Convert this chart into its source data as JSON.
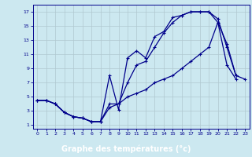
{
  "xlabel": "Graphe des températures (°c)",
  "bg_color": "#cce8f0",
  "plot_bg_color": "#cce8f0",
  "line_color": "#00008b",
  "grid_color": "#b0c8d0",
  "xlabel_bg": "#00008b",
  "xlabel_fg": "#ffffff",
  "xlim": [
    -0.5,
    23.5
  ],
  "ylim": [
    0.5,
    18
  ],
  "xticks": [
    0,
    1,
    2,
    3,
    4,
    5,
    6,
    7,
    8,
    9,
    10,
    11,
    12,
    13,
    14,
    15,
    16,
    17,
    18,
    19,
    20,
    21,
    22,
    23
  ],
  "yticks": [
    1,
    3,
    5,
    7,
    9,
    11,
    13,
    15,
    17
  ],
  "line1_x": [
    0,
    1,
    2,
    3,
    4,
    5,
    6,
    7,
    8,
    9,
    10,
    11,
    12,
    13,
    14,
    15,
    16,
    17,
    18,
    19,
    20,
    21,
    22
  ],
  "line1_y": [
    4.5,
    4.5,
    4,
    2.8,
    2.2,
    2,
    1.5,
    1.5,
    8,
    3.2,
    10.5,
    11.5,
    10.5,
    13.5,
    14.2,
    16.2,
    16.5,
    17,
    17,
    17,
    15.5,
    9.5,
    7.5
  ],
  "line2_x": [
    0,
    1,
    2,
    3,
    4,
    5,
    6,
    7,
    8,
    9,
    10,
    11,
    12,
    13,
    14,
    15,
    16,
    17,
    18,
    19,
    20,
    21,
    22
  ],
  "line2_y": [
    4.5,
    4.5,
    4,
    2.8,
    2.2,
    2,
    1.5,
    1.5,
    4,
    4,
    7,
    9.5,
    10,
    12,
    14,
    15.5,
    16.5,
    17,
    17,
    17,
    16,
    12,
    8
  ],
  "line3_x": [
    0,
    1,
    2,
    3,
    4,
    5,
    6,
    7,
    8,
    9,
    10,
    11,
    12,
    13,
    14,
    15,
    16,
    17,
    18,
    19,
    20,
    21,
    22,
    23
  ],
  "line3_y": [
    4.5,
    4.5,
    4,
    2.8,
    2.2,
    2,
    1.5,
    1.5,
    3.5,
    4,
    5,
    5.5,
    6,
    7,
    7.5,
    8,
    9,
    10,
    11,
    12,
    15.5,
    12.5,
    8,
    7.5
  ]
}
